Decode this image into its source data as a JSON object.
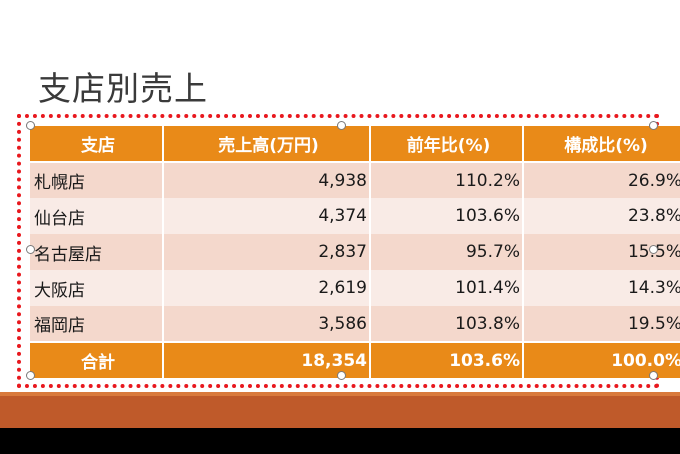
{
  "slide": {
    "title": "支店別売上"
  },
  "table": {
    "headers": [
      "支店",
      "売上高(万円)",
      "前年比(%)",
      "構成比(%)"
    ],
    "rows": [
      [
        "札幌店",
        "4,938",
        "110.2%",
        "26.9%"
      ],
      [
        "仙台店",
        "4,374",
        "103.6%",
        "23.8%"
      ],
      [
        "名古屋店",
        "2,837",
        "95.7%",
        "15.5%"
      ],
      [
        "大阪店",
        "2,619",
        "101.4%",
        "14.3%"
      ],
      [
        "福岡店",
        "3,586",
        "103.8%",
        "19.5%"
      ]
    ],
    "total": [
      "合計",
      "18,354",
      "103.6%",
      "100.0%"
    ]
  },
  "colors": {
    "header": "#e98a18",
    "row_odd": "#f4d8cc",
    "row_even": "#f9ebe6",
    "selection": "#e8181e",
    "footer_band": "#bf5a2a"
  }
}
